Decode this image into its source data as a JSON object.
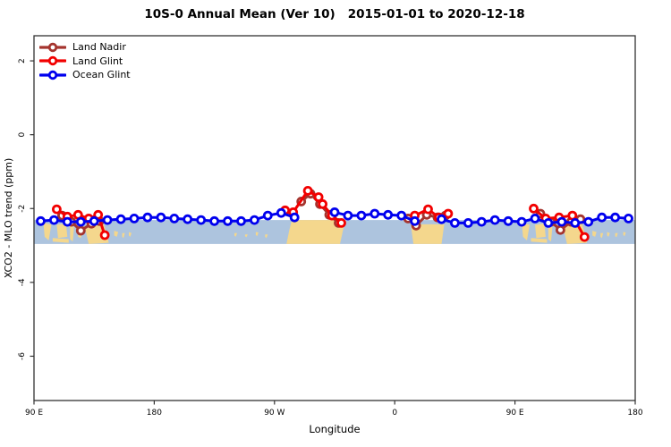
{
  "title": "10S-0 Annual Mean (Ver 10)   2015-01-01 to 2020-12-18",
  "legend": {
    "items": [
      {
        "label": "Land Nadir",
        "color": "#A5342E"
      },
      {
        "label": "Land Glint",
        "color": "#F20000"
      },
      {
        "label": "Ocean Glint",
        "color": "#0000EE"
      }
    ]
  },
  "chart_data": {
    "type": "line",
    "title": "10S-0 Annual Mean (Ver 10)   2015-01-01 to 2020-12-18",
    "xlabel": "Longitude",
    "ylabel": "XCO2 - MLO trend (ppm)",
    "x_axis_note": "x in degrees east of 90E along axis, wrapping 450 deg total",
    "x_range": [
      0,
      450
    ],
    "ylim": [
      -7.2,
      2.68
    ],
    "x_ticks": [
      {
        "pos": 0,
        "label": "90 E"
      },
      {
        "pos": 90,
        "label": "180"
      },
      {
        "pos": 180,
        "label": "90 W"
      },
      {
        "pos": 270,
        "label": "0"
      },
      {
        "pos": 360,
        "label": "90 E"
      },
      {
        "pos": 450,
        "label": "180"
      }
    ],
    "y_ticks": [
      {
        "pos": 2,
        "label": "2"
      },
      {
        "pos": 0,
        "label": "0"
      },
      {
        "pos": -2,
        "label": "-2"
      },
      {
        "pos": -4,
        "label": "-4"
      },
      {
        "pos": -6,
        "label": "-6"
      }
    ],
    "grid": false,
    "legend_position": "top-left",
    "map_band": {
      "description": "equatorial world-map strip behind data",
      "top_value": -2.31,
      "bottom_value": -2.96,
      "ocean_color": "#ADC4DE",
      "land_color": "#F4D78D",
      "land_shapes": [
        {
          "name": "sumatra",
          "pts": [
            [
              7,
              0.1
            ],
            [
              13,
              0.2
            ],
            [
              11,
              0.85
            ],
            [
              8,
              0.7
            ]
          ]
        },
        {
          "name": "java",
          "pts": [
            [
              14,
              0.75
            ],
            [
              26,
              0.8
            ],
            [
              26,
              0.95
            ],
            [
              14,
              0.9
            ]
          ]
        },
        {
          "name": "borneo",
          "pts": [
            [
              17,
              0.2
            ],
            [
              24,
              0.15
            ],
            [
              25,
              0.7
            ],
            [
              18,
              0.75
            ]
          ]
        },
        {
          "name": "sulawesi",
          "pts": [
            [
              27,
              0.25
            ],
            [
              30,
              0.3
            ],
            [
              29,
              0.9
            ],
            [
              27,
              0.8
            ]
          ]
        },
        {
          "name": "seram",
          "pts": [
            [
              33,
              0.5
            ],
            [
              36,
              0.5
            ],
            [
              35,
              0.75
            ],
            [
              33,
              0.7
            ]
          ]
        },
        {
          "name": "new-guinea",
          "pts": [
            [
              38,
              0.3
            ],
            [
              52,
              0.1
            ],
            [
              56,
              0.95
            ],
            [
              41,
              1.0
            ]
          ]
        },
        {
          "name": "solomons-1",
          "pts": [
            [
              60,
              0.45
            ],
            [
              63,
              0.5
            ],
            [
              62,
              0.7
            ],
            [
              60,
              0.65
            ]
          ]
        },
        {
          "name": "solomons-2",
          "pts": [
            [
              66,
              0.55
            ],
            [
              68,
              0.55
            ],
            [
              67,
              0.75
            ],
            [
              66,
              0.7
            ]
          ]
        },
        {
          "name": "solomons-3",
          "pts": [
            [
              71,
              0.5
            ],
            [
              73,
              0.55
            ],
            [
              72,
              0.7
            ],
            [
              71,
              0.65
            ]
          ]
        },
        {
          "name": "pacific-1",
          "pts": [
            [
              150,
              0.55
            ],
            [
              152,
              0.55
            ],
            [
              151,
              0.7
            ],
            [
              150,
              0.65
            ]
          ]
        },
        {
          "name": "pacific-2",
          "pts": [
            [
              158,
              0.6
            ],
            [
              160,
              0.6
            ],
            [
              159,
              0.72
            ],
            [
              158,
              0.68
            ]
          ]
        },
        {
          "name": "pacific-3",
          "pts": [
            [
              166,
              0.5
            ],
            [
              168,
              0.52
            ],
            [
              167,
              0.68
            ],
            [
              166,
              0.62
            ]
          ]
        },
        {
          "name": "pacific-4",
          "pts": [
            [
              173,
              0.6
            ],
            [
              175,
              0.6
            ],
            [
              174,
              0.75
            ],
            [
              173,
              0.7
            ]
          ]
        },
        {
          "name": "south-america",
          "pts": [
            [
              193,
              0.0
            ],
            [
              233,
              0.0
            ],
            [
              229,
              1.0
            ],
            [
              189,
              1.0
            ],
            [
              191,
              0.45
            ]
          ]
        },
        {
          "name": "africa",
          "pts": [
            [
              282,
              0.18
            ],
            [
              307,
              0.18
            ],
            [
              305,
              1.0
            ],
            [
              284,
              1.0
            ]
          ]
        },
        {
          "name": "sumatra-r",
          "pts": [
            [
              365,
              0.1
            ],
            [
              371,
              0.2
            ],
            [
              369,
              0.85
            ],
            [
              366,
              0.7
            ]
          ]
        },
        {
          "name": "java-r",
          "pts": [
            [
              372,
              0.75
            ],
            [
              384,
              0.8
            ],
            [
              384,
              0.95
            ],
            [
              372,
              0.9
            ]
          ]
        },
        {
          "name": "borneo-r",
          "pts": [
            [
              375,
              0.2
            ],
            [
              382,
              0.15
            ],
            [
              383,
              0.7
            ],
            [
              376,
              0.75
            ]
          ]
        },
        {
          "name": "sulawesi-r",
          "pts": [
            [
              385,
              0.25
            ],
            [
              388,
              0.3
            ],
            [
              387,
              0.9
            ],
            [
              385,
              0.8
            ]
          ]
        },
        {
          "name": "new-guinea-r",
          "pts": [
            [
              396,
              0.3
            ],
            [
              410,
              0.1
            ],
            [
              414,
              0.95
            ],
            [
              399,
              1.0
            ]
          ]
        },
        {
          "name": "specks-r1",
          "pts": [
            [
              418,
              0.45
            ],
            [
              421,
              0.5
            ],
            [
              420,
              0.7
            ],
            [
              418,
              0.65
            ]
          ]
        },
        {
          "name": "specks-r2",
          "pts": [
            [
              424,
              0.55
            ],
            [
              426,
              0.55
            ],
            [
              425,
              0.75
            ],
            [
              424,
              0.7
            ]
          ]
        },
        {
          "name": "specks-r3",
          "pts": [
            [
              429,
              0.5
            ],
            [
              431,
              0.55
            ],
            [
              430,
              0.7
            ],
            [
              429,
              0.65
            ]
          ]
        },
        {
          "name": "specks-r4",
          "pts": [
            [
              435,
              0.55
            ],
            [
              437,
              0.55
            ],
            [
              436,
              0.72
            ],
            [
              435,
              0.68
            ]
          ]
        },
        {
          "name": "specks-r5",
          "pts": [
            [
              441,
              0.5
            ],
            [
              443,
              0.52
            ],
            [
              442,
              0.68
            ],
            [
              441,
              0.62
            ]
          ]
        }
      ]
    },
    "series": [
      {
        "name": "Land Nadir",
        "color": "#A5342E",
        "segments": [
          [
            [
              21,
              -2.19
            ],
            [
              28,
              -2.36
            ],
            [
              35,
              -2.6
            ],
            [
              43,
              -2.41
            ],
            [
              49,
              -2.34
            ]
          ],
          [
            [
              200,
              -1.81
            ],
            [
              207,
              -1.6
            ],
            [
              214,
              -1.88
            ],
            [
              221,
              -2.17
            ],
            [
              228,
              -2.39
            ]
          ],
          [
            [
              280,
              -2.27
            ],
            [
              286,
              -2.46
            ],
            [
              294,
              -2.17
            ],
            [
              302,
              -2.24
            ],
            [
              308,
              -2.19
            ]
          ],
          [
            [
              379,
              -2.14
            ],
            [
              387,
              -2.36
            ],
            [
              394,
              -2.58
            ],
            [
              402,
              -2.36
            ],
            [
              409,
              -2.29
            ]
          ]
        ]
      },
      {
        "name": "Land Glint",
        "color": "#F20000",
        "segments": [
          [
            [
              17,
              -2.02
            ],
            [
              25,
              -2.22
            ],
            [
              33,
              -2.17
            ],
            [
              41,
              -2.27
            ],
            [
              48,
              -2.17
            ],
            [
              53,
              -2.72
            ]
          ],
          [
            [
              188,
              -2.05
            ],
            [
              194,
              -2.1
            ],
            [
              205,
              -1.52
            ],
            [
              213,
              -1.69
            ],
            [
              216,
              -1.88
            ],
            [
              223,
              -2.19
            ],
            [
              230,
              -2.39
            ]
          ],
          [
            [
              285,
              -2.19
            ],
            [
              295,
              -2.02
            ],
            [
              303,
              -2.24
            ],
            [
              310,
              -2.14
            ]
          ],
          [
            [
              374,
              -2.0
            ],
            [
              383,
              -2.27
            ],
            [
              393,
              -2.24
            ],
            [
              403,
              -2.19
            ],
            [
              412,
              -2.77
            ]
          ]
        ]
      },
      {
        "name": "Ocean Glint",
        "color": "#0000EE",
        "segments": [
          [
            [
              5,
              -2.34
            ],
            [
              15,
              -2.31
            ],
            [
              25,
              -2.36
            ],
            [
              35,
              -2.36
            ],
            [
              45,
              -2.34
            ],
            [
              55,
              -2.31
            ],
            [
              65,
              -2.29
            ],
            [
              75,
              -2.27
            ],
            [
              85,
              -2.24
            ],
            [
              95,
              -2.24
            ],
            [
              105,
              -2.27
            ],
            [
              115,
              -2.29
            ],
            [
              125,
              -2.31
            ],
            [
              135,
              -2.34
            ],
            [
              145,
              -2.34
            ],
            [
              155,
              -2.34
            ],
            [
              165,
              -2.31
            ],
            [
              175,
              -2.19
            ],
            [
              185,
              -2.12
            ],
            [
              195,
              -2.24
            ]
          ],
          [
            [
              225,
              -2.1
            ],
            [
              235,
              -2.19
            ],
            [
              245,
              -2.19
            ],
            [
              255,
              -2.14
            ],
            [
              265,
              -2.17
            ],
            [
              275,
              -2.19
            ],
            [
              285,
              -2.34
            ]
          ],
          [
            [
              305,
              -2.29
            ],
            [
              315,
              -2.39
            ],
            [
              325,
              -2.39
            ],
            [
              335,
              -2.36
            ],
            [
              345,
              -2.31
            ],
            [
              355,
              -2.34
            ],
            [
              365,
              -2.36
            ],
            [
              375,
              -2.27
            ],
            [
              385,
              -2.39
            ],
            [
              395,
              -2.36
            ],
            [
              405,
              -2.39
            ],
            [
              415,
              -2.36
            ],
            [
              425,
              -2.24
            ],
            [
              435,
              -2.24
            ],
            [
              445,
              -2.27
            ]
          ]
        ]
      }
    ]
  }
}
